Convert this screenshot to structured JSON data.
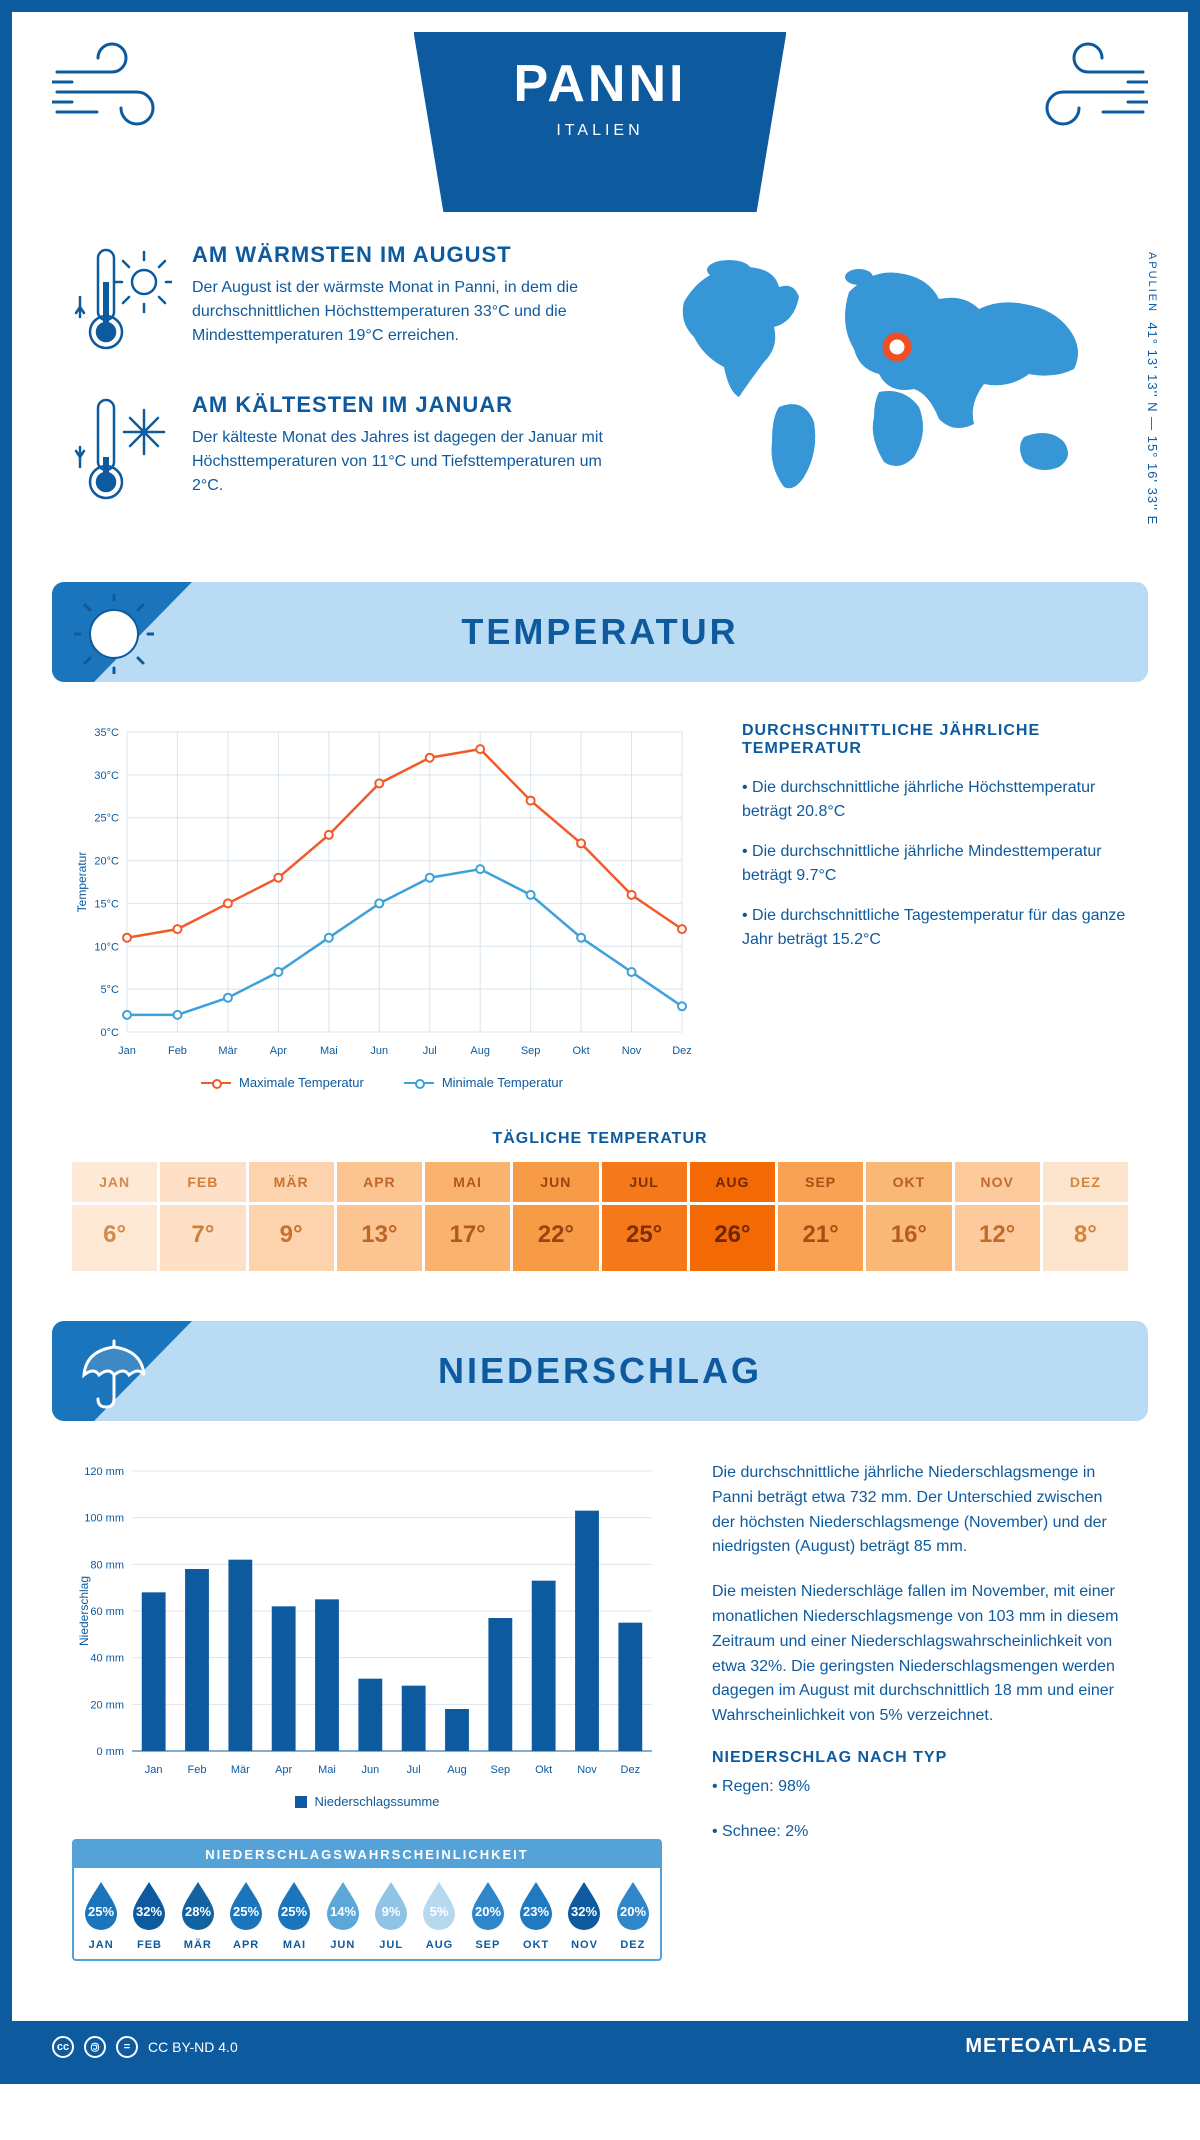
{
  "colors": {
    "primary": "#0d5a9e",
    "lightblue": "#b9dcf4",
    "mediumblue": "#1b75bc",
    "skyblue": "#55a2d8",
    "orange": "#f15a29",
    "white": "#ffffff",
    "grid": "#d8e4ee"
  },
  "header": {
    "title": "PANNI",
    "subtitle": "ITALIEN"
  },
  "coords": {
    "region": "APULIEN",
    "text": "41° 13' 13'' N — 15° 16' 33'' E"
  },
  "intro": {
    "warm": {
      "title": "AM WÄRMSTEN IM AUGUST",
      "text": "Der August ist der wärmste Monat in Panni, in dem die durchschnittlichen Höchsttemperaturen 33°C und die Mindesttemperaturen 19°C erreichen."
    },
    "cold": {
      "title": "AM KÄLTESTEN IM JANUAR",
      "text": "Der kälteste Monat des Jahres ist dagegen der Januar mit Höchsttemperaturen von 11°C und Tiefsttemperaturen um 2°C."
    }
  },
  "months": [
    "Jan",
    "Feb",
    "Mär",
    "Apr",
    "Mai",
    "Jun",
    "Jul",
    "Aug",
    "Sep",
    "Okt",
    "Nov",
    "Dez"
  ],
  "months_upper": [
    "JAN",
    "FEB",
    "MÄR",
    "APR",
    "MAI",
    "JUN",
    "JUL",
    "AUG",
    "SEP",
    "OKT",
    "NOV",
    "DEZ"
  ],
  "temperature": {
    "section_title": "TEMPERATUR",
    "ylabel": "Temperatur",
    "ylim": [
      0,
      35
    ],
    "ytick_step": 5,
    "max_series": {
      "label": "Maximale Temperatur",
      "color": "#f15a29",
      "values": [
        11,
        12,
        15,
        18,
        23,
        29,
        32,
        33,
        27,
        22,
        16,
        12
      ]
    },
    "min_series": {
      "label": "Minimale Temperatur",
      "color": "#3fa1db",
      "values": [
        2,
        2,
        4,
        7,
        11,
        15,
        18,
        19,
        16,
        11,
        7,
        3
      ]
    },
    "info_title": "DURCHSCHNITTLICHE JÄHRLICHE TEMPERATUR",
    "bullets": [
      "• Die durchschnittliche jährliche Höchsttemperatur beträgt 20.8°C",
      "• Die durchschnittliche jährliche Mindesttemperatur beträgt 9.7°C",
      "• Die durchschnittliche Tagestemperatur für das ganze Jahr beträgt 15.2°C"
    ],
    "daily_title": "TÄGLICHE TEMPERATUR",
    "daily": [
      {
        "v": "6°",
        "bg": "#fde9d6",
        "fg": "#d68a4a"
      },
      {
        "v": "7°",
        "bg": "#fde0c5",
        "fg": "#d07f3c"
      },
      {
        "v": "9°",
        "bg": "#fcd3ac",
        "fg": "#c87230"
      },
      {
        "v": "13°",
        "bg": "#fbc491",
        "fg": "#bf6525"
      },
      {
        "v": "17°",
        "bg": "#fab26f",
        "fg": "#b3581c"
      },
      {
        "v": "22°",
        "bg": "#f89b46",
        "fg": "#9a4411"
      },
      {
        "v": "25°",
        "bg": "#f5791a",
        "fg": "#7d3005"
      },
      {
        "v": "26°",
        "bg": "#f36a05",
        "fg": "#6e2700"
      },
      {
        "v": "21°",
        "bg": "#f9a254",
        "fg": "#a74e15"
      },
      {
        "v": "16°",
        "bg": "#fab876",
        "fg": "#b85d1f"
      },
      {
        "v": "12°",
        "bg": "#fcca9c",
        "fg": "#c36b29"
      },
      {
        "v": "8°",
        "bg": "#fde5cd",
        "fg": "#d38540"
      }
    ]
  },
  "precipitation": {
    "section_title": "NIEDERSCHLAG",
    "ylabel": "Niederschlag",
    "ylim": [
      0,
      120
    ],
    "ytick_step": 20,
    "values": [
      68,
      78,
      82,
      62,
      65,
      31,
      28,
      18,
      57,
      73,
      103,
      55
    ],
    "bar_color": "#0d5a9e",
    "legend": "Niederschlagssumme",
    "text1": "Die durchschnittliche jährliche Niederschlagsmenge in Panni beträgt etwa 732 mm. Der Unterschied zwischen der höchsten Niederschlagsmenge (November) und der niedrigsten (August) beträgt 85 mm.",
    "text2": "Die meisten Niederschläge fallen im November, mit einer monatlichen Niederschlagsmenge von 103 mm in diesem Zeitraum und einer Niederschlagswahrscheinlichkeit von etwa 32%. Die geringsten Niederschlagsmengen werden dagegen im August mit durchschnittlich 18 mm und einer Wahrscheinlichkeit von 5% verzeichnet.",
    "type_title": "NIEDERSCHLAG NACH TYP",
    "type_bullets": [
      "• Regen: 98%",
      "• Schnee: 2%"
    ],
    "prob_title": "NIEDERSCHLAGSWAHRSCHEINLICHKEIT",
    "prob": [
      {
        "v": "25%",
        "c": "#1b75bc"
      },
      {
        "v": "32%",
        "c": "#0d5a9e"
      },
      {
        "v": "28%",
        "c": "#12639f"
      },
      {
        "v": "25%",
        "c": "#1b75bc"
      },
      {
        "v": "25%",
        "c": "#1b75bc"
      },
      {
        "v": "14%",
        "c": "#5aa7d8"
      },
      {
        "v": "9%",
        "c": "#8fc4e6"
      },
      {
        "v": "5%",
        "c": "#b7d9ef"
      },
      {
        "v": "20%",
        "c": "#2f86c8"
      },
      {
        "v": "23%",
        "c": "#1f7ac0"
      },
      {
        "v": "32%",
        "c": "#0d5a9e"
      },
      {
        "v": "20%",
        "c": "#2f86c8"
      }
    ]
  },
  "footer": {
    "license": "CC BY-ND 4.0",
    "site": "METEOATLAS.DE"
  }
}
